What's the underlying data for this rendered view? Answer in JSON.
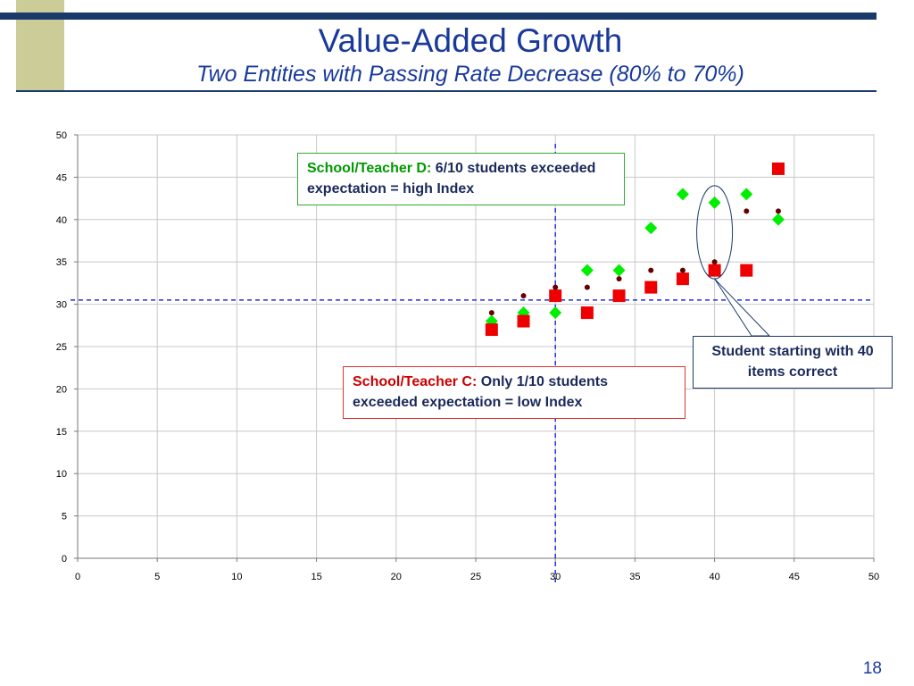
{
  "slide": {
    "title": "Value-Added Growth",
    "subtitle": "Two Entities with Passing Rate Decrease (80% to 70%)",
    "page_number": "18"
  },
  "callouts": {
    "teacher_d": {
      "label": "School/Teacher D:",
      "text": "6/10 students exceeded expectation = high Index"
    },
    "teacher_c": {
      "label": "School/Teacher C:",
      "text": "Only 1/10 students exceeded expectation = low Index"
    },
    "student": {
      "text": "Student starting with 40 items correct"
    }
  },
  "chart_data": {
    "type": "scatter",
    "xlim": [
      0,
      50
    ],
    "ylim": [
      0,
      50
    ],
    "x_ticks": [
      0,
      5,
      10,
      15,
      20,
      25,
      30,
      35,
      40,
      45,
      50
    ],
    "y_ticks": [
      0,
      5,
      10,
      15,
      20,
      25,
      30,
      35,
      40,
      45,
      50
    ],
    "grid": true,
    "reference_lines": {
      "x": 30,
      "y": 30.5
    },
    "series": [
      {
        "marker": "diamond",
        "color": "#00ee00",
        "x": [
          26,
          28,
          30,
          32,
          34,
          36,
          38,
          40,
          42,
          44
        ],
        "y": [
          28,
          29,
          29,
          34,
          34,
          39,
          43,
          42,
          43,
          40
        ]
      },
      {
        "marker": "square",
        "color": "#ee0000",
        "x": [
          26,
          28,
          30,
          32,
          34,
          36,
          38,
          40,
          42,
          44
        ],
        "y": [
          27,
          28,
          31,
          29,
          31,
          32,
          33,
          34,
          34,
          46
        ]
      },
      {
        "marker": "dot",
        "color": "#660000",
        "x": [
          26,
          28,
          30,
          32,
          34,
          36,
          38,
          40,
          42,
          44
        ],
        "y": [
          29,
          31,
          32,
          32,
          33,
          34,
          34,
          35,
          41,
          41
        ]
      }
    ],
    "highlight": {
      "x": 40,
      "y_range": [
        33,
        44
      ]
    }
  }
}
